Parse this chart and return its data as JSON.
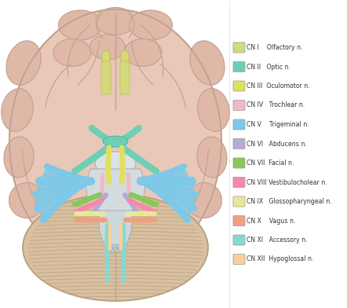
{
  "background_color": "#ffffff",
  "legend_items": [
    {
      "label": "CN I    Olfactory n.",
      "color": "#d4d97a"
    },
    {
      "label": "CN II   Optic n.",
      "color": "#6ecfb5"
    },
    {
      "label": "CN III  Oculomotor n.",
      "color": "#e0e060"
    },
    {
      "label": "CN IV   Trochlear n.",
      "color": "#f0b8c8"
    },
    {
      "label": "CN V    Trigeminal n.",
      "color": "#7ec8e8"
    },
    {
      "label": "CN VI   Abducens n.",
      "color": "#b8a8d8"
    },
    {
      "label": "CN VII  Facial n.",
      "color": "#88c858"
    },
    {
      "label": "CN VIII Vestibulocholear n.",
      "color": "#f888a8"
    },
    {
      "label": "CN IX   Glossopharyngeal n.",
      "color": "#e8e898"
    },
    {
      "label": "CN X    Vagus n.",
      "color": "#f0a080"
    },
    {
      "label": "CN XI   Accessory n.",
      "color": "#88d8d0"
    },
    {
      "label": "CN XII  Hypoglossal n.",
      "color": "#f8d098"
    }
  ],
  "brain_fill": "#eac8b8",
  "brain_stroke": "#c0a090",
  "gyri_fill": "#e0b8a8",
  "cerebellum_fill": "#d8c0a0",
  "cerebellum_stroke": "#b8a080",
  "brainstem_color": "#d8dde0",
  "pons_color": "#c8d0d8",
  "medulla_color": "#d0d8dc"
}
